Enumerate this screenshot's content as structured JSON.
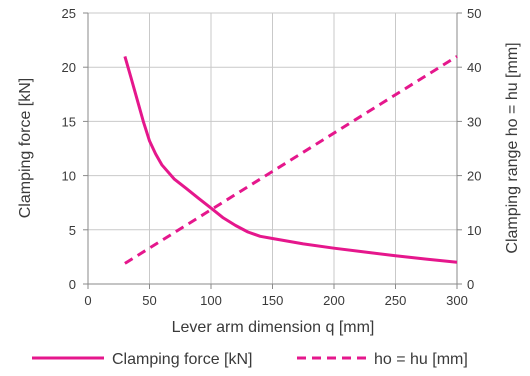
{
  "chart_data": {
    "type": "line",
    "x_axis": {
      "label": "Lever arm dimension q [mm]",
      "range": [
        0,
        300
      ],
      "ticks": [
        0,
        50,
        100,
        150,
        200,
        250,
        300
      ]
    },
    "y_axis_left": {
      "label": "Clamping force [kN]",
      "range": [
        0,
        25
      ],
      "ticks": [
        0,
        5,
        10,
        15,
        20,
        25
      ]
    },
    "y_axis_right": {
      "label": "Clamping range ho = hu [mm]",
      "range": [
        0,
        50
      ],
      "ticks": [
        0,
        10,
        20,
        30,
        40,
        50
      ]
    },
    "grid": true,
    "legend_position": "bottom",
    "series": [
      {
        "name": "Clamping force [kN]",
        "axis": "left",
        "style": "solid",
        "color": "#e5178c",
        "x": [
          30,
          35,
          40,
          45,
          50,
          55,
          60,
          70,
          80,
          90,
          100,
          110,
          120,
          130,
          140,
          150,
          175,
          200,
          225,
          250,
          275,
          300
        ],
        "y": [
          21,
          19,
          17,
          15,
          13.2,
          12,
          11,
          9.7,
          8.8,
          7.9,
          7.0,
          6.1,
          5.4,
          4.8,
          4.4,
          4.2,
          3.7,
          3.3,
          2.95,
          2.6,
          2.3,
          2.0
        ]
      },
      {
        "name": "ho = hu [mm]",
        "axis": "right",
        "style": "dashed",
        "color": "#e5178c",
        "x": [
          30,
          300
        ],
        "y": [
          3.8,
          42
        ]
      }
    ]
  }
}
